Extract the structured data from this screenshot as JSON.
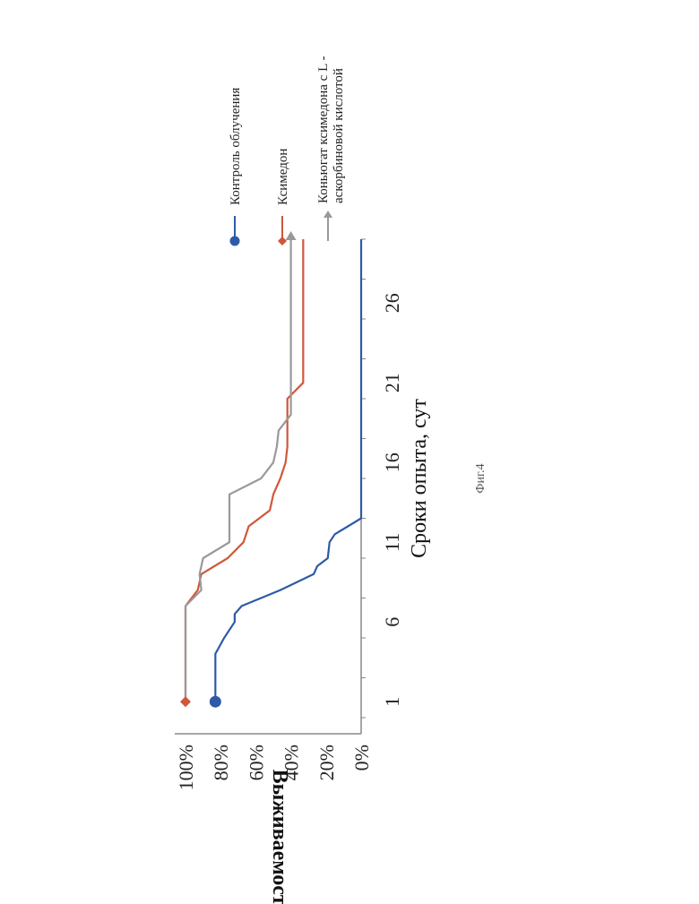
{
  "chart_data": {
    "type": "line",
    "title": "",
    "xlabel": "Сроки опыта, сут",
    "ylabel": "Выживаемость",
    "x_ticks": [
      "1",
      "6",
      "11",
      "16",
      "21",
      "26"
    ],
    "x_tick_values": [
      1,
      6,
      11,
      16,
      21,
      26
    ],
    "y_ticks": [
      "0%",
      "20%",
      "40%",
      "60%",
      "80%",
      "100%"
    ],
    "y_tick_values": [
      0,
      20,
      40,
      60,
      80,
      100
    ],
    "xlim": [
      0,
      30
    ],
    "ylim": [
      0,
      100
    ],
    "legend_position": "right",
    "series": [
      {
        "name": "Контроль облучения",
        "color": "#2e5aa8",
        "marker": "circle",
        "points": [
          [
            1,
            83
          ],
          [
            4,
            83
          ],
          [
            5,
            78
          ],
          [
            6,
            72
          ],
          [
            6.5,
            72
          ],
          [
            7,
            68
          ],
          [
            8,
            46
          ],
          [
            9,
            27
          ],
          [
            9.5,
            25
          ],
          [
            10,
            19
          ],
          [
            11,
            18
          ],
          [
            11.5,
            15
          ],
          [
            12.5,
            0
          ],
          [
            30,
            0
          ]
        ]
      },
      {
        "name": "Ксимедон",
        "color": "#d0573a",
        "marker": "diamond",
        "points": [
          [
            1,
            100
          ],
          [
            7,
            100
          ],
          [
            8,
            93
          ],
          [
            9,
            91
          ],
          [
            10,
            76
          ],
          [
            11,
            67
          ],
          [
            12,
            64
          ],
          [
            13,
            52
          ],
          [
            14,
            50
          ],
          [
            15,
            46
          ],
          [
            16,
            43
          ],
          [
            17,
            42
          ],
          [
            20,
            42
          ],
          [
            21,
            33
          ],
          [
            30,
            33
          ]
        ]
      },
      {
        "name": "Коньюгат ксимедона с L - аскорбиновой кислотой",
        "color": "#999999",
        "marker": "triangle",
        "points": [
          [
            1,
            100
          ],
          [
            7,
            100
          ],
          [
            8,
            91
          ],
          [
            9,
            92
          ],
          [
            10,
            90
          ],
          [
            11,
            75
          ],
          [
            12,
            75
          ],
          [
            13,
            75
          ],
          [
            14,
            75
          ],
          [
            15,
            57
          ],
          [
            16,
            50
          ],
          [
            17,
            48
          ],
          [
            18,
            47
          ],
          [
            19,
            40
          ],
          [
            30,
            40
          ]
        ]
      }
    ]
  },
  "figure_caption": "Фиг.4"
}
